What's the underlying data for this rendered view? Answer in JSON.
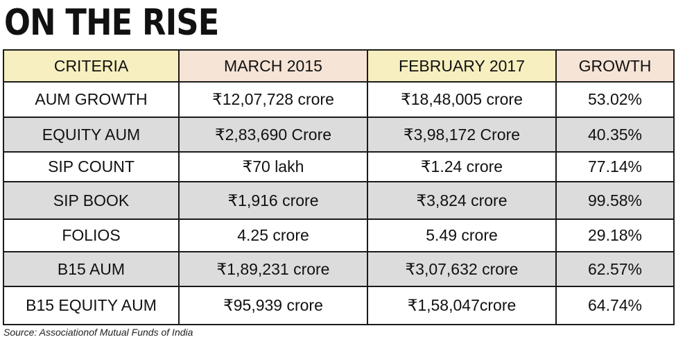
{
  "title": "ON THE RISE",
  "source": "Source: Associationof Mutual Funds of India",
  "colors": {
    "header_cream": "#f7efbf",
    "header_peach": "#f6e4d6",
    "row_shade": "#dcdcdc",
    "border": "#1a1a1a"
  },
  "chart_data": {
    "type": "table",
    "title": "ON THE RISE",
    "columns": [
      "CRITERIA",
      "MARCH 2015",
      "FEBRUARY 2017",
      "GROWTH"
    ],
    "rows": [
      [
        "AUM GROWTH",
        "₹12,07,728 crore",
        "₹18,48,005 crore",
        "53.02%"
      ],
      [
        "EQUITY AUM",
        "₹2,83,690 Crore",
        "₹3,98,172 Crore",
        "40.35%"
      ],
      [
        "SIP COUNT",
        "₹70 lakh",
        "₹1.24 crore",
        "77.14%"
      ],
      [
        "SIP BOOK",
        "₹1,916 crore",
        "₹3,824 crore",
        "99.58%"
      ],
      [
        "FOLIOS",
        "4.25 crore",
        "5.49 crore",
        "29.18%"
      ],
      [
        "B15 AUM",
        "₹1,89,231 crore",
        "₹3,07,632 crore",
        "62.57%"
      ],
      [
        "B15 EQUITY AUM",
        "₹95,939 crore",
        "₹1,58,047crore",
        "64.74%"
      ]
    ],
    "source": "Source: Associationof Mutual Funds of India"
  }
}
